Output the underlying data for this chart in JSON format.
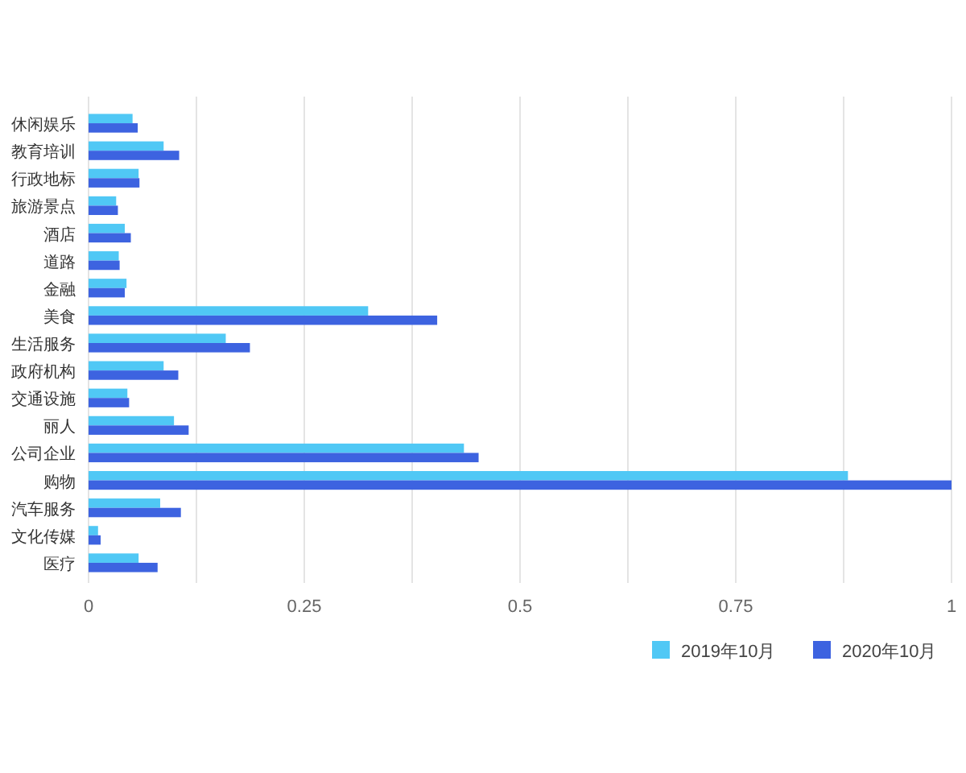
{
  "chart_data": {
    "type": "bar",
    "orientation": "horizontal",
    "categories": [
      "休闲娱乐",
      "教育培训",
      "行政地标",
      "旅游景点",
      "酒店",
      "道路",
      "金融",
      "美食",
      "生活服务",
      "政府机构",
      "交通设施",
      "丽人",
      "公司企业",
      "购物",
      "汽车服务",
      "文化传媒",
      "医疗"
    ],
    "series": [
      {
        "name": "2019年10月",
        "color": "#50c8f5",
        "values": [
          0.051,
          0.087,
          0.058,
          0.032,
          0.042,
          0.035,
          0.044,
          0.324,
          0.159,
          0.087,
          0.045,
          0.099,
          0.435,
          0.88,
          0.083,
          0.011,
          0.058
        ]
      },
      {
        "name": "2020年10月",
        "color": "#3d63e0",
        "values": [
          0.057,
          0.105,
          0.059,
          0.034,
          0.049,
          0.036,
          0.042,
          0.404,
          0.187,
          0.104,
          0.047,
          0.116,
          0.452,
          1.0,
          0.107,
          0.014,
          0.08
        ]
      }
    ],
    "xlim": [
      0,
      1
    ],
    "xticks": [
      0,
      {
        "value": 0.125,
        "label": null
      },
      0.25,
      {
        "value": 0.375,
        "label": null
      },
      0.5,
      {
        "value": 0.625,
        "label": null
      },
      0.75,
      {
        "value": 0.875,
        "label": null
      },
      1
    ],
    "grid": "x",
    "legend": "bottom right"
  }
}
